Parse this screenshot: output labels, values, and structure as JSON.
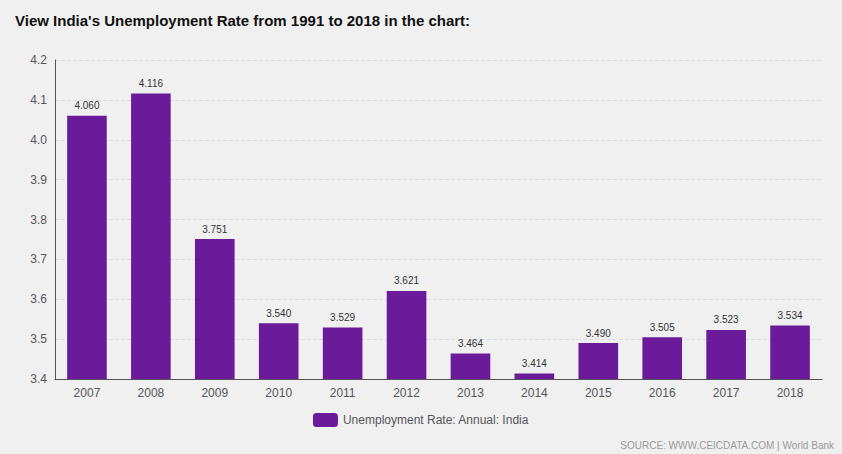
{
  "chart_data": {
    "type": "bar",
    "title": "View India's Unemployment Rate from 1991 to 2018 in the chart:",
    "categories": [
      "2007",
      "2008",
      "2009",
      "2010",
      "2011",
      "2012",
      "2013",
      "2014",
      "2015",
      "2016",
      "2017",
      "2018"
    ],
    "series": [
      {
        "name": "Unemployment Rate: Annual: India",
        "color": "#6a1b9a",
        "values": [
          4.06,
          4.116,
          3.751,
          3.54,
          3.529,
          3.621,
          3.464,
          3.414,
          3.49,
          3.505,
          3.523,
          3.534
        ],
        "value_labels": [
          "4.060",
          "4.116",
          "3.751",
          "3.540",
          "3.529",
          "3.621",
          "3.464",
          "3.414",
          "3.490",
          "3.505",
          "3.523",
          "3.534"
        ]
      }
    ],
    "ylim": [
      3.4,
      4.2
    ],
    "yticks": [
      3.4,
      3.5,
      3.6,
      3.7,
      3.8,
      3.9,
      {
        "value": 4.0,
        "label": "4.0"
      },
      4.1,
      4.2
    ],
    "grid": true,
    "legend": "bottom",
    "data_labels": true,
    "annotations": [
      "SOURCE: WWW.CEICDATA.COM | World Bank"
    ]
  }
}
